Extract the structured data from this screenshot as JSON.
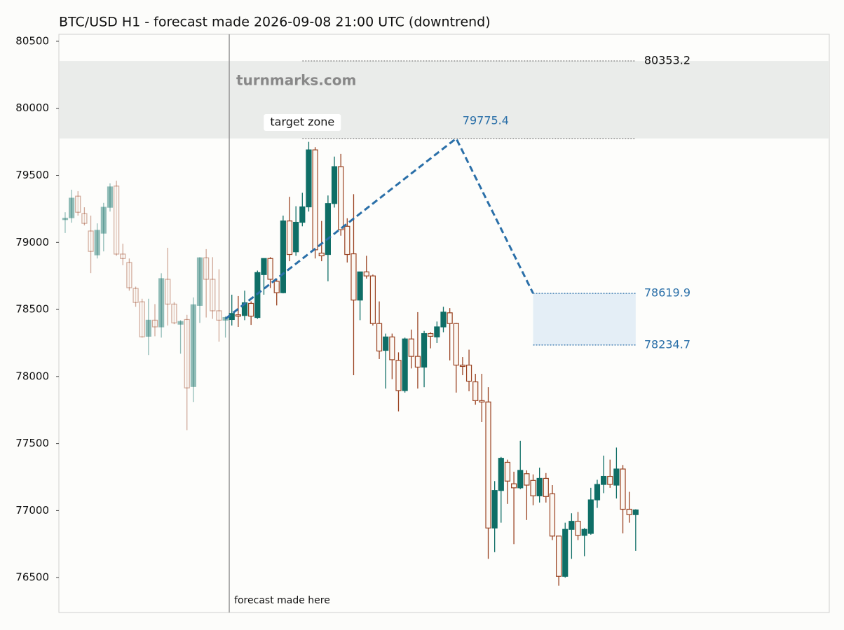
{
  "chart_data": {
    "type": "candlestick",
    "title": "BTC/USD H1 - forecast made 2026-09-08 21:00 UTC (downtrend)",
    "watermark": "turnmarks.com",
    "ylim": [
      76240,
      80552
    ],
    "yticks": [
      76500,
      77000,
      77500,
      78000,
      78500,
      79000,
      79500,
      80000,
      80500
    ],
    "xlim": [
      -0.98,
      119.2
    ],
    "up_color": "#0f6e66",
    "down_color": "#9a4322",
    "open": [
      79170,
      79184,
      79345,
      79215,
      79085,
      78907,
      79069,
      79262,
      79420,
      78913,
      78850,
      78657,
      78557,
      78300,
      78420,
      78370,
      78725,
      78540,
      78390,
      78425,
      77925,
      78530,
      78885,
      78725,
      78490,
      78420,
      78425,
      78460,
      78455,
      78545,
      78440,
      78760,
      78880,
      78710,
      78625,
      79160,
      78930,
      79150,
      79265,
      79690,
      78920,
      78910,
      79290,
      79565,
      79120,
      78915,
      78570,
      78780,
      78750,
      78395,
      78195,
      78295,
      78120,
      77895,
      78280,
      78150,
      78070,
      78320,
      78295,
      78370,
      78475,
      78395,
      78085,
      78085,
      77960,
      77820,
      77810,
      76870,
      77150,
      77360,
      77200,
      77170,
      77275,
      77225,
      77110,
      77240,
      77125,
      76810,
      76510,
      76860,
      76920,
      76815,
      76830,
      77080,
      77195,
      77255,
      77190,
      77310,
      77010,
      76970
    ],
    "high": [
      79225,
      79393,
      79382,
      79262,
      79200,
      79142,
      79295,
      79440,
      79460,
      78990,
      78880,
      78670,
      78580,
      78580,
      78540,
      78770,
      78960,
      78555,
      78420,
      78460,
      78590,
      78890,
      78950,
      78890,
      78800,
      78450,
      78610,
      78600,
      78640,
      78560,
      78790,
      78880,
      78890,
      78730,
      79200,
      79340,
      79270,
      79370,
      79750,
      79710,
      79160,
      79350,
      79640,
      79660,
      79180,
      79360,
      78780,
      78900,
      78760,
      78560,
      78320,
      78320,
      78180,
      78290,
      78350,
      78480,
      78340,
      78330,
      78410,
      78520,
      78510,
      78400,
      78145,
      78200,
      78020,
      78020,
      77920,
      77220,
      77400,
      77380,
      77290,
      77520,
      77300,
      77270,
      77320,
      77280,
      77190,
      76810,
      76910,
      76980,
      76990,
      76870,
      77170,
      77230,
      77410,
      77380,
      77470,
      77340,
      77140,
      77010
    ],
    "low": [
      79070,
      79147,
      79200,
      79127,
      78771,
      78880,
      78933,
      79230,
      78900,
      78830,
      78640,
      78520,
      78290,
      78160,
      78300,
      78290,
      78380,
      78390,
      78170,
      77600,
      77810,
      78400,
      78440,
      78430,
      78260,
      78290,
      78380,
      78370,
      78420,
      78385,
      78430,
      78610,
      78660,
      78530,
      78620,
      78860,
      78900,
      79120,
      79230,
      78880,
      78860,
      78710,
      79260,
      79050,
      78850,
      78010,
      78420,
      78730,
      78380,
      78130,
      77910,
      77980,
      77740,
      77880,
      78060,
      77910,
      77920,
      78210,
      78250,
      78330,
      78120,
      77880,
      78010,
      77890,
      77790,
      77660,
      76640,
      76690,
      76910,
      77050,
      76750,
      77160,
      76930,
      77040,
      77060,
      77060,
      76780,
      76440,
      76500,
      76640,
      76780,
      76660,
      76820,
      77020,
      77130,
      77170,
      77090,
      76830,
      76910,
      76700
    ],
    "close": [
      79180,
      79330,
      79225,
      79142,
      78933,
      79090,
      79262,
      79414,
      78913,
      78880,
      78662,
      78552,
      78296,
      78420,
      78370,
      78730,
      78540,
      78400,
      78410,
      77915,
      78535,
      78885,
      78725,
      78490,
      78420,
      78440,
      78470,
      78450,
      78550,
      78450,
      78775,
      78880,
      78725,
      78625,
      79160,
      78910,
      79150,
      79265,
      79690,
      78945,
      78900,
      79290,
      79565,
      79095,
      78910,
      78570,
      78780,
      78750,
      78395,
      78190,
      78295,
      78125,
      77895,
      78280,
      78150,
      78070,
      78320,
      78300,
      78370,
      78480,
      78395,
      78085,
      78075,
      77965,
      77820,
      77810,
      76870,
      77150,
      77390,
      77220,
      77170,
      77300,
      77190,
      77110,
      77240,
      77105,
      76810,
      76510,
      76860,
      76920,
      76815,
      76860,
      77080,
      77195,
      77255,
      77195,
      77310,
      77010,
      76970,
      77005
    ],
    "forecast_x": 25.6,
    "forecast_label": "forecast made here",
    "forecast": {
      "color": "#2a6fa8",
      "x": [
        25,
        61,
        73
      ],
      "values": [
        78430,
        79775.4,
        78619.9
      ]
    },
    "target_zone": {
      "label": "target zone",
      "low": 79775.4,
      "high": 80353.2
    },
    "forecast_zone": {
      "low": 78234.7,
      "high": 78619.9
    }
  }
}
